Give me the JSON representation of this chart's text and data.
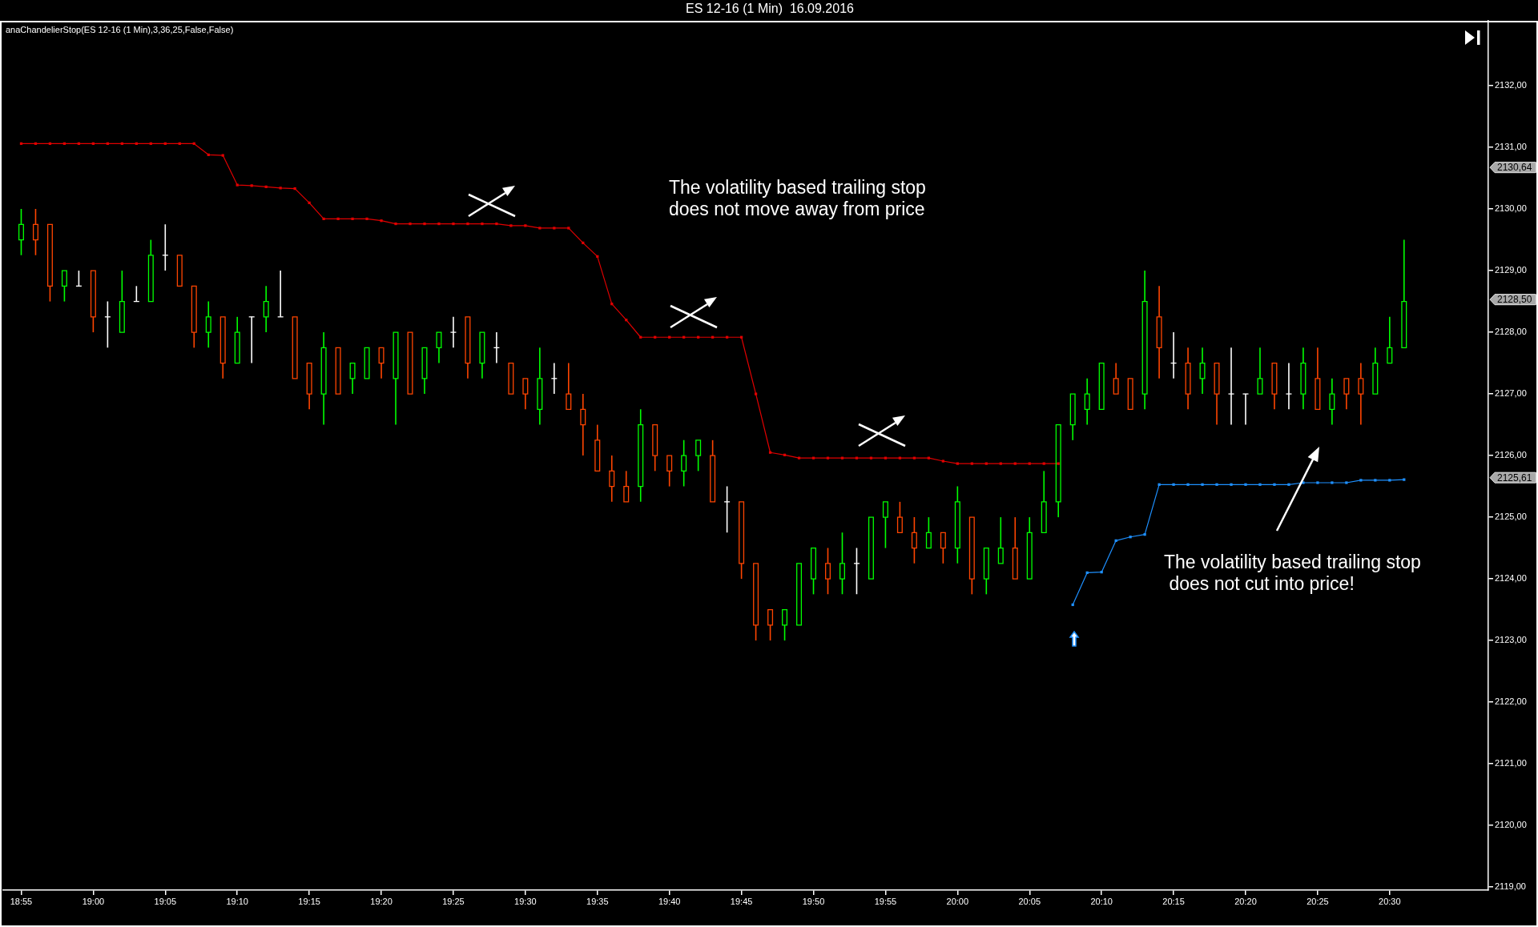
{
  "chart_data": {
    "type": "candlestick",
    "title": "ES 12-16 (1 Min)  16.09.2016",
    "categories": [
      "18:55",
      null,
      null,
      null,
      null,
      "19:00",
      null,
      null,
      null,
      null,
      "19:05",
      null,
      null,
      null,
      null,
      "19:10",
      null,
      null,
      null,
      null,
      "19:15",
      null,
      null,
      null,
      null,
      "19:20",
      null,
      null,
      null,
      null,
      "19:25",
      null,
      null,
      null,
      null,
      "19:30",
      null,
      null,
      null,
      null,
      "19:35",
      null,
      null,
      null,
      null,
      "19:40",
      null,
      null,
      null,
      null,
      "19:45",
      null,
      null,
      null,
      null,
      "19:50",
      null,
      null,
      null,
      null,
      "19:55",
      null,
      null,
      null,
      null,
      "20:00",
      null,
      null,
      null,
      null,
      "20:05",
      null,
      null,
      null,
      null,
      "20:10",
      null,
      null,
      null,
      null,
      "20:15",
      null,
      null,
      null,
      null,
      "20:20",
      null,
      null,
      null,
      null,
      "20:25",
      null,
      null,
      null,
      null,
      "20:30",
      null
    ],
    "ohlc": [
      [
        2129.5,
        2130,
        2129.25,
        2129.75
      ],
      [
        2129.75,
        2130,
        2129.25,
        2129.5
      ],
      [
        2129.75,
        2129.75,
        2128.5,
        2128.75
      ],
      [
        2128.75,
        2129,
        2128.5,
        2129
      ],
      [
        2128.75,
        2129,
        2128.75,
        2128.75
      ],
      [
        2129,
        2129,
        2128,
        2128.25
      ],
      [
        2128.25,
        2128.5,
        2127.75,
        2128.25
      ],
      [
        2128,
        2129,
        2128,
        2128.5
      ],
      [
        2128.5,
        2128.75,
        2128.5,
        2128.5
      ],
      [
        2128.5,
        2129.5,
        2128.5,
        2129.25
      ],
      [
        2129.25,
        2129.75,
        2129,
        2129.25
      ],
      [
        2129.25,
        2129.25,
        2128.75,
        2128.75
      ],
      [
        2128.75,
        2128.75,
        2127.75,
        2128
      ],
      [
        2128,
        2128.5,
        2127.75,
        2128.25
      ],
      [
        2128.25,
        2128.25,
        2127.25,
        2127.5
      ],
      [
        2127.5,
        2128.25,
        2127.5,
        2128
      ],
      [
        2128.25,
        2128.25,
        2127.5,
        2128.25
      ],
      [
        2128.25,
        2128.75,
        2128,
        2128.5
      ],
      [
        2128.25,
        2129,
        2128.25,
        2128.25
      ],
      [
        2128.25,
        2128.25,
        2127.25,
        2127.25
      ],
      [
        2127.5,
        2127.5,
        2126.75,
        2127
      ],
      [
        2127,
        2128,
        2126.5,
        2127.75
      ],
      [
        2127.75,
        2127.75,
        2127,
        2127
      ],
      [
        2127.25,
        2127.5,
        2127,
        2127.5
      ],
      [
        2127.25,
        2127.75,
        2127.25,
        2127.75
      ],
      [
        2127.75,
        2127.75,
        2127.25,
        2127.5
      ],
      [
        2127.25,
        2128,
        2126.5,
        2128
      ],
      [
        2128,
        2128,
        2127,
        2127
      ],
      [
        2127.25,
        2127.75,
        2127,
        2127.75
      ],
      [
        2127.75,
        2128,
        2127.5,
        2128
      ],
      [
        2128,
        2128.25,
        2127.75,
        2128
      ],
      [
        2128.25,
        2128.25,
        2127.25,
        2127.5
      ],
      [
        2127.5,
        2128,
        2127.25,
        2128
      ],
      [
        2127.75,
        2128,
        2127.5,
        2127.75
      ],
      [
        2127.5,
        2127.5,
        2127,
        2127
      ],
      [
        2127.25,
        2127.25,
        2126.75,
        2127
      ],
      [
        2126.75,
        2127.75,
        2126.5,
        2127.25
      ],
      [
        2127.25,
        2127.5,
        2127,
        2127.25
      ],
      [
        2127,
        2127.5,
        2126.75,
        2126.75
      ],
      [
        2126.75,
        2127,
        2126,
        2126.5
      ],
      [
        2126.25,
        2126.5,
        2125.75,
        2125.75
      ],
      [
        2125.75,
        2126,
        2125.25,
        2125.5
      ],
      [
        2125.5,
        2125.75,
        2125.25,
        2125.25
      ],
      [
        2125.5,
        2126.75,
        2125.25,
        2126.5
      ],
      [
        2126.5,
        2126.5,
        2125.75,
        2126
      ],
      [
        2126,
        2126,
        2125.5,
        2125.75
      ],
      [
        2125.75,
        2126.25,
        2125.5,
        2126
      ],
      [
        2126,
        2126.25,
        2125.75,
        2126.25
      ],
      [
        2126,
        2126.25,
        2125.25,
        2125.25
      ],
      [
        2125.25,
        2125.5,
        2124.75,
        2125.25
      ],
      [
        2125.25,
        2125.25,
        2124,
        2124.25
      ],
      [
        2124.25,
        2124.25,
        2123,
        2123.25
      ],
      [
        2123.5,
        2123.5,
        2123,
        2123.25
      ],
      [
        2123.25,
        2123.5,
        2123,
        2123.5
      ],
      [
        2123.25,
        2124.25,
        2123.25,
        2124.25
      ],
      [
        2124,
        2124.5,
        2123.75,
        2124.5
      ],
      [
        2124.25,
        2124.5,
        2123.75,
        2124
      ],
      [
        2124,
        2124.75,
        2123.75,
        2124.25
      ],
      [
        2124.25,
        2124.5,
        2123.75,
        2124.25
      ],
      [
        2124,
        2125,
        2124,
        2125
      ],
      [
        2125,
        2125.25,
        2124.5,
        2125.25
      ],
      [
        2125,
        2125.25,
        2124.75,
        2124.75
      ],
      [
        2124.75,
        2125,
        2124.25,
        2124.5
      ],
      [
        2124.5,
        2125,
        2124.5,
        2124.75
      ],
      [
        2124.75,
        2124.75,
        2124.25,
        2124.5
      ],
      [
        2124.5,
        2125.5,
        2124.25,
        2125.25
      ],
      [
        2125,
        2125,
        2123.75,
        2124
      ],
      [
        2124,
        2124.5,
        2123.75,
        2124.5
      ],
      [
        2124.25,
        2125,
        2124.25,
        2124.5
      ],
      [
        2124.5,
        2125,
        2124,
        2124
      ],
      [
        2124,
        2125,
        2124,
        2124.75
      ],
      [
        2124.75,
        2125.75,
        2124.75,
        2125.25
      ],
      [
        2125.25,
        2126.5,
        2125,
        2126.5
      ],
      [
        2126.5,
        2127,
        2126.25,
        2127
      ],
      [
        2126.75,
        2127.25,
        2126.5,
        2127
      ],
      [
        2126.75,
        2127.5,
        2126.75,
        2127.5
      ],
      [
        2127.25,
        2127.5,
        2127,
        2127
      ],
      [
        2127.25,
        2127.25,
        2126.75,
        2126.75
      ],
      [
        2127,
        2129,
        2126.75,
        2128.5
      ],
      [
        2128.25,
        2128.75,
        2127.25,
        2127.75
      ],
      [
        2127.5,
        2128,
        2127.25,
        2127.5
      ],
      [
        2127.5,
        2127.75,
        2126.75,
        2127
      ],
      [
        2127.25,
        2127.75,
        2127,
        2127.5
      ],
      [
        2127.5,
        2127.5,
        2126.5,
        2127
      ],
      [
        2127,
        2127.75,
        2126.5,
        2127
      ],
      [
        2127,
        2127,
        2126.5,
        2127
      ],
      [
        2127,
        2127.75,
        2127,
        2127.25
      ],
      [
        2127.5,
        2127.5,
        2126.75,
        2127
      ],
      [
        2127,
        2127.5,
        2126.75,
        2127
      ],
      [
        2127,
        2127.75,
        2126.75,
        2127.5
      ],
      [
        2127.25,
        2127.75,
        2126.75,
        2126.75
      ],
      [
        2126.75,
        2127.25,
        2126.5,
        2127
      ],
      [
        2127.25,
        2127.25,
        2126.75,
        2127
      ],
      [
        2127.25,
        2127.5,
        2126.5,
        2127
      ],
      [
        2127,
        2127.75,
        2127,
        2127.5
      ],
      [
        2127.5,
        2128.25,
        2127.5,
        2127.75
      ],
      [
        2127.75,
        2129.5,
        2127.75,
        2128.5
      ]
    ],
    "colors": [
      "#00ff00",
      "#ff4500",
      "#ff4500",
      "#00ff00",
      "#ffffff",
      "#ff4500",
      "#ffffff",
      "#00ff00",
      "#ffffff",
      "#00ff00",
      "#ffffff",
      "#ff4500",
      "#ff4500",
      "#00ff00",
      "#ff4500",
      "#00ff00",
      "#ffffff",
      "#00ff00",
      "#ffffff",
      "#ff4500",
      "#ff4500",
      "#00ff00",
      "#ff4500",
      "#00ff00",
      "#00ff00",
      "#ff4500",
      "#00ff00",
      "#ff4500",
      "#00ff00",
      "#00ff00",
      "#ffffff",
      "#ff4500",
      "#00ff00",
      "#ffffff",
      "#ff4500",
      "#ff4500",
      "#00ff00",
      "#ffffff",
      "#ff4500",
      "#ff4500",
      "#ff4500",
      "#ff4500",
      "#ff4500",
      "#00ff00",
      "#ff4500",
      "#ff4500",
      "#00ff00",
      "#00ff00",
      "#ff4500",
      "#ffffff",
      "#ff4500",
      "#ff4500",
      "#ff4500",
      "#00ff00",
      "#00ff00",
      "#00ff00",
      "#ff4500",
      "#00ff00",
      "#ffffff",
      "#00ff00",
      "#00ff00",
      "#ff4500",
      "#ff4500",
      "#00ff00",
      "#ff4500",
      "#00ff00",
      "#ff4500",
      "#00ff00",
      "#00ff00",
      "#ff4500",
      "#00ff00",
      "#00ff00",
      "#00ff00",
      "#00ff00",
      "#00ff00",
      "#00ff00",
      "#ff4500",
      "#ff4500",
      "#00ff00",
      "#ff4500",
      "#ffffff",
      "#ff4500",
      "#00ff00",
      "#ff4500",
      "#ffffff",
      "#ffffff",
      "#00ff00",
      "#ff4500",
      "#ffffff",
      "#00ff00",
      "#ff4500",
      "#00ff00",
      "#ff4500",
      "#ff4500",
      "#00ff00",
      "#00ff00",
      "#00ff00"
    ],
    "series": [
      {
        "type": "line",
        "color": "#e00000",
        "values": [
          2131.06,
          2131.06,
          2131.06,
          2131.06,
          2131.06,
          2131.06,
          2131.06,
          2131.06,
          2131.06,
          2131.06,
          2131.06,
          2131.06,
          2131.06,
          2130.88,
          2130.87,
          2130.39,
          2130.38,
          2130.36,
          2130.34,
          2130.33,
          2130.1,
          2129.84,
          2129.84,
          2129.84,
          2129.84,
          2129.81,
          2129.76,
          2129.76,
          2129.76,
          2129.76,
          2129.76,
          2129.76,
          2129.76,
          2129.76,
          2129.73,
          2129.73,
          2129.69,
          2129.69,
          2129.69,
          2129.45,
          2129.23,
          2128.46,
          2128.2,
          2127.92,
          2127.92,
          2127.92,
          2127.92,
          2127.92,
          2127.92,
          2127.92,
          2127.92,
          2127.0,
          2126.05,
          2126.01,
          2125.96,
          2125.96,
          2125.96,
          2125.96,
          2125.96,
          2125.96,
          2125.96,
          2125.96,
          2125.96,
          2125.96,
          2125.91,
          2125.87,
          2125.87,
          2125.87,
          2125.87,
          2125.87,
          2125.87,
          2125.87,
          2125.87,
          null,
          null,
          null,
          null,
          null,
          null,
          null,
          null,
          null,
          null,
          null,
          null,
          null,
          null,
          null,
          null,
          null,
          null,
          null,
          null,
          null,
          null,
          null,
          null
        ]
      },
      {
        "type": "line",
        "color": "#1e90ff",
        "values": [
          null,
          null,
          null,
          null,
          null,
          null,
          null,
          null,
          null,
          null,
          null,
          null,
          null,
          null,
          null,
          null,
          null,
          null,
          null,
          null,
          null,
          null,
          null,
          null,
          null,
          null,
          null,
          null,
          null,
          null,
          null,
          null,
          null,
          null,
          null,
          null,
          null,
          null,
          null,
          null,
          null,
          null,
          null,
          null,
          null,
          null,
          null,
          null,
          null,
          null,
          null,
          null,
          null,
          null,
          null,
          null,
          null,
          null,
          null,
          null,
          null,
          null,
          null,
          null,
          null,
          null,
          null,
          null,
          null,
          null,
          null,
          null,
          null,
          2123.58,
          2124.1,
          2124.11,
          2124.62,
          2124.68,
          2124.72,
          2125.53,
          2125.53,
          2125.53,
          2125.53,
          2125.53,
          2125.53,
          2125.53,
          2125.53,
          2125.53,
          2125.53,
          2125.56,
          2125.56,
          2125.56,
          2125.56,
          2125.6,
          2125.6,
          2125.6,
          2125.61
        ]
      }
    ],
    "ylim": [
      2118.95,
      2133.05
    ],
    "yticks": [
      {
        "value": 2119,
        "label": "2119,00"
      },
      {
        "value": 2120,
        "label": "2120,00"
      },
      {
        "value": 2121,
        "label": "2121,00"
      },
      {
        "value": 2122,
        "label": "2122,00"
      },
      {
        "value": 2123,
        "label": "2123,00"
      },
      {
        "value": 2124,
        "label": "2124,00"
      },
      {
        "value": 2125,
        "label": "2125,00"
      },
      {
        "value": 2126,
        "label": "2126,00"
      },
      {
        "value": 2127,
        "label": "2127,00"
      },
      {
        "value": 2128,
        "label": "2128,00"
      },
      {
        "value": 2129,
        "label": "2129,00"
      },
      {
        "value": 2130,
        "label": "2130,00"
      },
      {
        "value": 2131,
        "label": "2131,00"
      },
      {
        "value": 2132,
        "label": "2132,00"
      }
    ],
    "marker": "square",
    "annotations": [
      "anaChandelierStop(ES 12-16 (1 Min),3,36,25,False,False)",
      "The volatility based trailing stop\ndoes not move away from price",
      "The volatility based trailing stop\n does not cut into price!",
      "2130,64",
      "2128,50",
      "2125,61"
    ]
  }
}
